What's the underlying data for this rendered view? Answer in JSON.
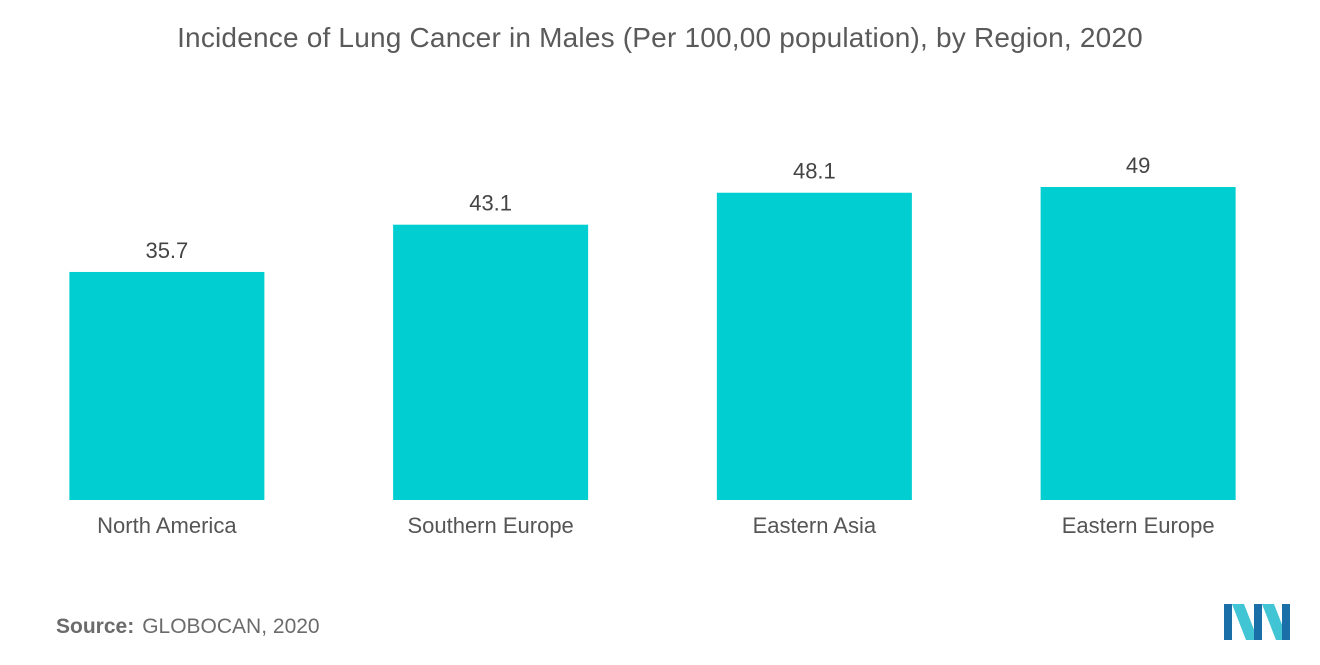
{
  "chart_data": {
    "type": "bar",
    "title": "Incidence of Lung Cancer in Males (Per 100,00 population), by Region, 2020",
    "categories": [
      "North America",
      "Southern Europe",
      "Eastern Asia",
      "Eastern Europe"
    ],
    "values": [
      35.7,
      43.1,
      48.1,
      49
    ],
    "value_labels": [
      "35.7",
      "43.1",
      "48.1",
      "49"
    ],
    "xlabel": "",
    "ylabel": "",
    "ylim": [
      0,
      49
    ],
    "grid": false,
    "bar_color": "#00ced1"
  },
  "source": {
    "label": "Source:",
    "text": "GLOBOCAN, 2020"
  },
  "logo": {
    "icon": "mordor-intelligence-logo-icon",
    "colors": [
      "#1a6fa8",
      "#41c4d4"
    ]
  }
}
